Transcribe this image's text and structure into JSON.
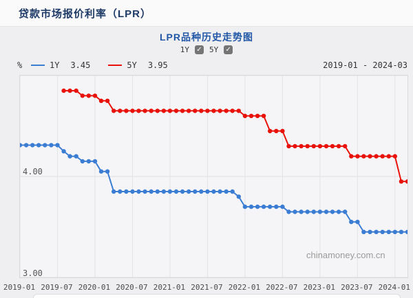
{
  "header": {
    "title": "贷款市场报价利率（LPR）"
  },
  "chart": {
    "title": "LPR品种历史走势图",
    "date_range": "2019-01 - 2024-03",
    "unit": "%",
    "watermark": "chinamoney.com.cn",
    "checkboxes": [
      {
        "label": "1Y",
        "checked": true
      },
      {
        "label": "5Y",
        "checked": true
      }
    ],
    "legend": [
      {
        "name": "1Y",
        "value": "3.45",
        "color": "#3c7dd4"
      },
      {
        "name": "5Y",
        "value": "3.95",
        "color": "#e8120a"
      }
    ]
  },
  "chart_data": {
    "type": "line",
    "title": "LPR品种历史走势图",
    "xlabel": "",
    "ylabel": "%",
    "ylim": [
      3.0,
      5.0
    ],
    "grid": true,
    "legend_position": "top",
    "y_gridlines": [
      3.0,
      4.0,
      5.0
    ],
    "y_inner_labels": [
      "4.00",
      "3.00"
    ],
    "x_ticks": [
      {
        "index": 0,
        "label": "2019-01"
      },
      {
        "index": 6,
        "label": "2019-07"
      },
      {
        "index": 12,
        "label": "2020-01"
      },
      {
        "index": 18,
        "label": "2020-07"
      },
      {
        "index": 24,
        "label": "2021-01"
      },
      {
        "index": 30,
        "label": "2021-07"
      },
      {
        "index": 36,
        "label": "2022-01"
      },
      {
        "index": 42,
        "label": "2022-07"
      },
      {
        "index": 48,
        "label": "2023-01"
      },
      {
        "index": 54,
        "label": "2023-07"
      },
      {
        "index": 60,
        "label": "2024-01"
      }
    ],
    "x": [
      "2019-01",
      "2019-02",
      "2019-03",
      "2019-04",
      "2019-05",
      "2019-06",
      "2019-07",
      "2019-08",
      "2019-09",
      "2019-10",
      "2019-11",
      "2019-12",
      "2020-01",
      "2020-02",
      "2020-03",
      "2020-04",
      "2020-05",
      "2020-06",
      "2020-07",
      "2020-08",
      "2020-09",
      "2020-10",
      "2020-11",
      "2020-12",
      "2021-01",
      "2021-02",
      "2021-03",
      "2021-04",
      "2021-05",
      "2021-06",
      "2021-07",
      "2021-08",
      "2021-09",
      "2021-10",
      "2021-11",
      "2021-12",
      "2022-01",
      "2022-02",
      "2022-03",
      "2022-04",
      "2022-05",
      "2022-06",
      "2022-07",
      "2022-08",
      "2022-09",
      "2022-10",
      "2022-11",
      "2022-12",
      "2023-01",
      "2023-02",
      "2023-03",
      "2023-04",
      "2023-05",
      "2023-06",
      "2023-07",
      "2023-08",
      "2023-09",
      "2023-10",
      "2023-11",
      "2023-12",
      "2024-01",
      "2024-02",
      "2024-03"
    ],
    "series": [
      {
        "name": "1Y",
        "color": "#3c7dd4",
        "values": [
          4.31,
          4.31,
          4.31,
          4.31,
          4.31,
          4.31,
          4.31,
          4.25,
          4.2,
          4.2,
          4.15,
          4.15,
          4.15,
          4.05,
          4.05,
          3.85,
          3.85,
          3.85,
          3.85,
          3.85,
          3.85,
          3.85,
          3.85,
          3.85,
          3.85,
          3.85,
          3.85,
          3.85,
          3.85,
          3.85,
          3.85,
          3.85,
          3.85,
          3.85,
          3.85,
          3.8,
          3.7,
          3.7,
          3.7,
          3.7,
          3.7,
          3.7,
          3.7,
          3.65,
          3.65,
          3.65,
          3.65,
          3.65,
          3.65,
          3.65,
          3.65,
          3.65,
          3.65,
          3.55,
          3.55,
          3.45,
          3.45,
          3.45,
          3.45,
          3.45,
          3.45,
          3.45,
          3.45
        ]
      },
      {
        "name": "5Y",
        "color": "#e8120a",
        "values": [
          null,
          null,
          null,
          null,
          null,
          null,
          null,
          4.85,
          4.85,
          4.85,
          4.8,
          4.8,
          4.8,
          4.75,
          4.75,
          4.65,
          4.65,
          4.65,
          4.65,
          4.65,
          4.65,
          4.65,
          4.65,
          4.65,
          4.65,
          4.65,
          4.65,
          4.65,
          4.65,
          4.65,
          4.65,
          4.65,
          4.65,
          4.65,
          4.65,
          4.65,
          4.6,
          4.6,
          4.6,
          4.6,
          4.45,
          4.45,
          4.45,
          4.3,
          4.3,
          4.3,
          4.3,
          4.3,
          4.3,
          4.3,
          4.3,
          4.3,
          4.3,
          4.2,
          4.2,
          4.2,
          4.2,
          4.2,
          4.2,
          4.2,
          4.2,
          3.95,
          3.95
        ]
      }
    ]
  }
}
